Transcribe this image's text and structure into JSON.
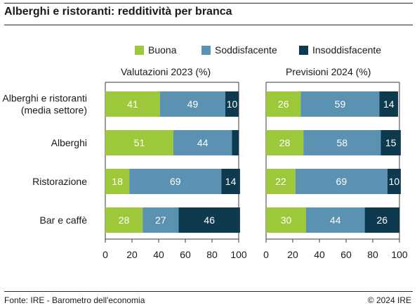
{
  "header": {
    "title": "Alberghi e ristoranti: redditività per branca"
  },
  "footer": {
    "source": "Fonte: IRE - Barometro dell'economia",
    "copyright": "© 2024 IRE"
  },
  "legend": [
    {
      "label": "Buona",
      "color": "#9cc83a"
    },
    {
      "label": "Soddisfacente",
      "color": "#5b92b2"
    },
    {
      "label": "Insoddisfacente",
      "color": "#0d3a4f"
    }
  ],
  "chart_data": [
    {
      "type": "bar",
      "orientation": "horizontal",
      "stacked": true,
      "title": "Valutazioni 2023 (%)",
      "categories": [
        [
          "Alberghi e ristoranti",
          "(media settore)"
        ],
        [
          "Alberghi"
        ],
        [
          "Ristorazione"
        ],
        [
          "Bar e caffè"
        ]
      ],
      "series": [
        {
          "name": "Buona",
          "values": [
            41,
            51,
            18,
            28
          ]
        },
        {
          "name": "Soddisfacente",
          "values": [
            49,
            44,
            69,
            27
          ]
        },
        {
          "name": "Insoddisfacente",
          "values": [
            10,
            5,
            14,
            46
          ]
        }
      ],
      "value_labels_hidden": [
        [
          false,
          false,
          false
        ],
        [
          false,
          false,
          true
        ],
        [
          false,
          false,
          false
        ],
        [
          false,
          false,
          false
        ]
      ],
      "xlim": [
        0,
        100
      ],
      "xticks": [
        0,
        20,
        40,
        60,
        80,
        100
      ]
    },
    {
      "type": "bar",
      "orientation": "horizontal",
      "stacked": true,
      "title": "Previsioni 2024 (%)",
      "categories": [
        [
          "Alberghi e ristoranti",
          "(media settore)"
        ],
        [
          "Alberghi"
        ],
        [
          "Ristorazione"
        ],
        [
          "Bar e caffè"
        ]
      ],
      "series": [
        {
          "name": "Buona",
          "values": [
            26,
            28,
            22,
            30
          ]
        },
        {
          "name": "Soddisfacente",
          "values": [
            59,
            58,
            69,
            44
          ]
        },
        {
          "name": "Insoddisfacente",
          "values": [
            14,
            15,
            10,
            26
          ]
        }
      ],
      "value_labels_hidden": [
        [
          false,
          false,
          false
        ],
        [
          false,
          false,
          false
        ],
        [
          false,
          false,
          false
        ],
        [
          false,
          false,
          false
        ]
      ],
      "xlim": [
        0,
        100
      ],
      "xticks": [
        0,
        20,
        40,
        60,
        80,
        100
      ]
    }
  ]
}
